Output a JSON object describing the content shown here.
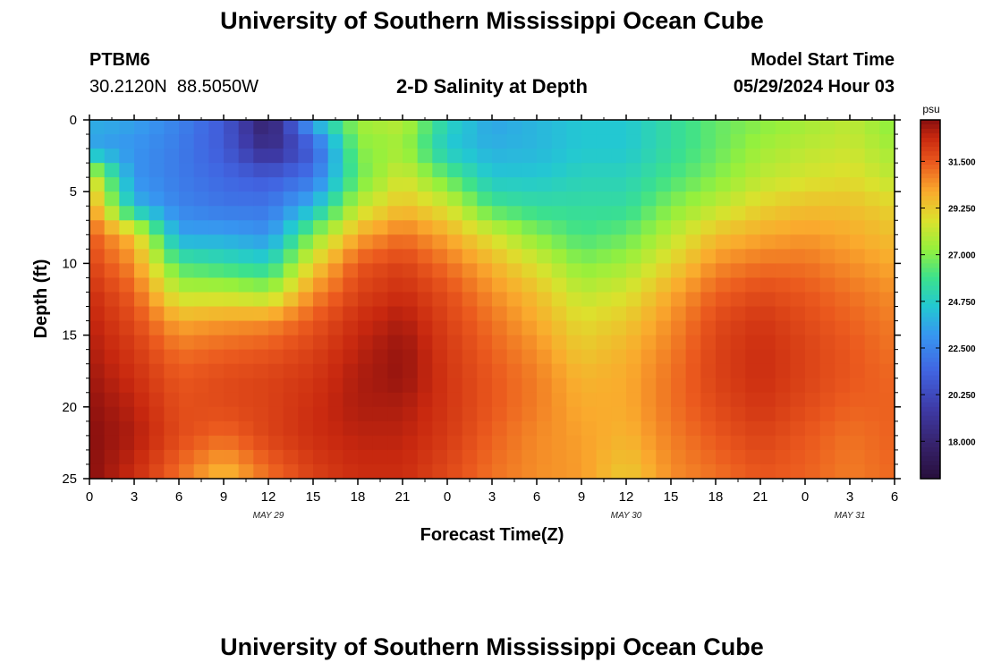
{
  "header": {
    "title": "University of Southern Mississippi Ocean Cube",
    "station_id": "PTBM6",
    "coordinates": "30.2120N  88.5050W",
    "subtitle": "2-D Salinity at Depth",
    "model_label": "Model Start Time",
    "model_time": "05/29/2024 Hour 03"
  },
  "footer": {
    "title": "University of Southern Mississippi Ocean Cube"
  },
  "colors": {
    "axis": "#000000",
    "background": "#ffffff"
  },
  "chart_data": {
    "type": "heatmap",
    "title": "2-D Salinity at Depth",
    "xlabel": "Forecast Time(Z)",
    "ylabel": "Depth (ft)",
    "x_ticks": [
      "0",
      "3",
      "6",
      "9",
      "12",
      "15",
      "18",
      "21",
      "0",
      "3",
      "6",
      "9",
      "12",
      "15",
      "18",
      "21",
      "0",
      "3",
      "6"
    ],
    "x_range_hours": [
      0,
      54
    ],
    "date_labels": [
      {
        "text": "MAY 29",
        "hour": 12
      },
      {
        "text": "MAY 30",
        "hour": 36
      },
      {
        "text": "MAY 31",
        "hour": 51
      }
    ],
    "y_ticks": [
      "0",
      "5",
      "10",
      "15",
      "20",
      "25"
    ],
    "y_range_ft": [
      0,
      25
    ],
    "colorbar": {
      "units": "psu",
      "tick_labels": [
        "31.500",
        "29.250",
        "27.000",
        "24.750",
        "22.500",
        "20.250",
        "18.000"
      ],
      "tick_values": [
        31.5,
        29.25,
        27.0,
        24.75,
        22.5,
        20.25,
        18.0
      ],
      "range": [
        16.2,
        33.5
      ]
    },
    "salinity_profiles": {
      "depths_ft": [
        0,
        2,
        4,
        6,
        8,
        10,
        12,
        14,
        16,
        18,
        20,
        22,
        25
      ],
      "hours": [
        0,
        3,
        6,
        9,
        12,
        15,
        18,
        21,
        24,
        27,
        30,
        33,
        36,
        39,
        42,
        45,
        48,
        51,
        54
      ],
      "values": [
        [
          23.8,
          23.5,
          29.0,
          30.5,
          31.5,
          32.0,
          32.5,
          32.8,
          33.0,
          33.2,
          33.4,
          33.5,
          33.5
        ],
        [
          23.5,
          23.0,
          23.0,
          24.0,
          29.5,
          30.5,
          31.3,
          31.8,
          32.2,
          32.5,
          32.8,
          33.0,
          32.5
        ],
        [
          22.5,
          22.2,
          22.2,
          22.5,
          23.5,
          26.0,
          28.0,
          30.0,
          31.0,
          31.5,
          31.7,
          31.8,
          31.0
        ],
        [
          21.0,
          21.0,
          21.5,
          22.0,
          23.5,
          25.5,
          28.0,
          30.3,
          31.3,
          31.8,
          31.8,
          31.2,
          29.5
        ],
        [
          17.5,
          18.5,
          21.0,
          22.0,
          23.0,
          25.0,
          27.5,
          30.5,
          31.5,
          32.0,
          32.0,
          32.0,
          31.0
        ],
        [
          24.0,
          21.0,
          22.0,
          24.0,
          27.0,
          29.0,
          30.5,
          31.5,
          32.0,
          32.3,
          32.5,
          32.5,
          32.0
        ],
        [
          27.5,
          27.0,
          26.5,
          28.0,
          30.0,
          31.5,
          32.0,
          32.5,
          32.8,
          33.0,
          33.0,
          32.8,
          32.5
        ],
        [
          28.0,
          27.5,
          28.5,
          29.5,
          31.0,
          32.0,
          32.5,
          33.0,
          33.3,
          33.3,
          33.0,
          32.8,
          32.5
        ],
        [
          25.0,
          24.5,
          26.5,
          28.5,
          30.0,
          31.0,
          31.7,
          32.0,
          32.2,
          32.3,
          32.3,
          32.2,
          31.8
        ],
        [
          23.5,
          23.8,
          24.5,
          26.0,
          28.5,
          29.8,
          30.5,
          31.0,
          31.3,
          31.5,
          31.5,
          31.3,
          31.0
        ],
        [
          24.0,
          24.0,
          24.5,
          25.5,
          27.0,
          28.5,
          29.5,
          30.0,
          30.5,
          30.8,
          30.8,
          30.6,
          30.5
        ],
        [
          24.5,
          24.5,
          25.0,
          25.5,
          26.0,
          27.0,
          28.0,
          28.8,
          29.3,
          29.8,
          30.0,
          30.2,
          30.3
        ],
        [
          24.5,
          24.5,
          25.0,
          25.5,
          26.5,
          27.5,
          28.5,
          29.3,
          29.8,
          30.0,
          30.0,
          29.8,
          29.2
        ],
        [
          25.5,
          25.5,
          26.0,
          27.0,
          28.0,
          29.0,
          30.0,
          30.5,
          30.8,
          31.0,
          31.0,
          30.8,
          30.5
        ],
        [
          26.5,
          26.5,
          27.0,
          28.0,
          29.5,
          30.5,
          31.3,
          31.8,
          32.0,
          32.0,
          31.8,
          31.5,
          31.0
        ],
        [
          27.0,
          27.5,
          28.0,
          29.0,
          30.0,
          31.0,
          31.8,
          32.3,
          32.5,
          32.5,
          32.3,
          32.0,
          31.5
        ],
        [
          27.5,
          28.0,
          28.5,
          29.5,
          30.3,
          31.0,
          31.5,
          31.8,
          32.0,
          32.0,
          31.8,
          31.5,
          31.3
        ],
        [
          28.0,
          28.3,
          28.8,
          29.5,
          30.0,
          30.5,
          31.0,
          31.3,
          31.5,
          31.5,
          31.3,
          31.0,
          30.8
        ],
        [
          27.0,
          27.5,
          28.0,
          29.0,
          29.5,
          30.0,
          30.5,
          30.8,
          31.0,
          31.2,
          31.3,
          31.3,
          31.2
        ]
      ]
    }
  }
}
